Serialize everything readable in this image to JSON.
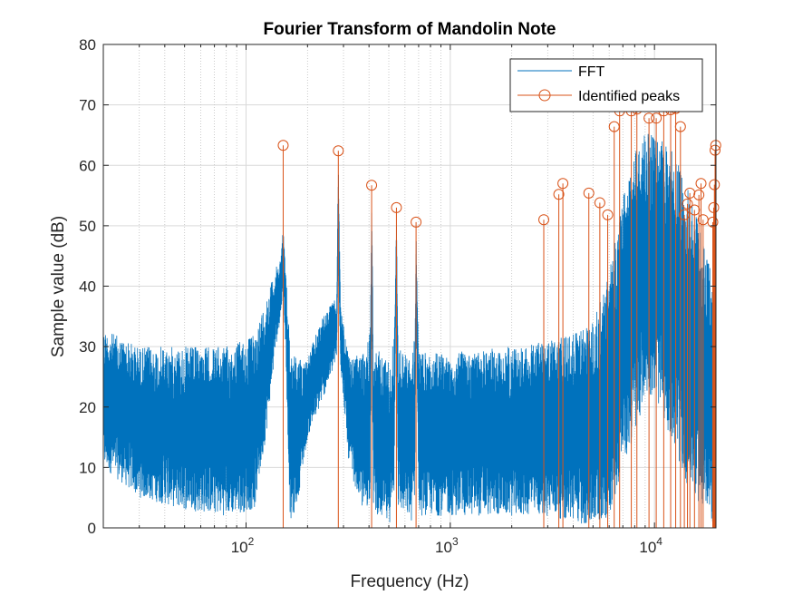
{
  "chart_data": {
    "type": "line",
    "title": "Fourier Transform of Mandolin Note",
    "xlabel": "Frequency (Hz)",
    "ylabel": "Sample value (dB)",
    "xscale": "log",
    "xlim": [
      20,
      20000
    ],
    "ylim": [
      0,
      80
    ],
    "yticks": [
      0,
      10,
      20,
      30,
      40,
      50,
      60,
      70,
      80
    ],
    "xticks": [
      {
        "value": 100,
        "base": "10",
        "exp": "2"
      },
      {
        "value": 1000,
        "base": "10",
        "exp": "3"
      },
      {
        "value": 10000,
        "base": "10",
        "exp": "4"
      }
    ],
    "grid": true,
    "legend": {
      "placement": "top-right"
    },
    "colors": {
      "fft": "#0072BD",
      "peaks": "#D95319"
    },
    "series": [
      {
        "name": "FFT",
        "style": "line",
        "noise_envelope": {
          "x": [
            20,
            30,
            50,
            80,
            110,
            125,
            140,
            148,
            152,
            156,
            165,
            180,
            200,
            230,
            260,
            278,
            283,
            290,
            320,
            380,
            405,
            412,
            420,
            500,
            530,
            545,
            555,
            650,
            670,
            680,
            700,
            1000,
            2000,
            3000,
            4000,
            5000,
            6000,
            7000,
            8000,
            9000,
            10000,
            12000,
            14000,
            16000,
            18000,
            20000
          ],
          "upper": [
            33,
            30,
            30,
            30,
            32,
            38,
            43,
            45,
            50,
            43,
            30,
            28,
            28,
            34,
            37,
            38,
            62,
            37,
            28,
            29,
            33,
            56,
            30,
            28,
            31,
            52,
            30,
            28,
            32,
            50,
            29,
            29,
            30,
            31,
            32,
            34,
            42,
            55,
            62,
            66,
            65,
            63,
            58,
            52,
            45,
            40
          ],
          "lower": [
            10,
            5,
            3,
            2,
            3,
            15,
            30,
            35,
            40,
            30,
            0,
            5,
            15,
            20,
            25,
            28,
            45,
            27,
            10,
            2,
            5,
            45,
            3,
            0,
            5,
            45,
            3,
            1,
            5,
            40,
            2,
            2,
            2,
            2,
            1,
            0,
            2,
            10,
            15,
            22,
            22,
            15,
            8,
            5,
            2,
            0
          ]
        }
      },
      {
        "name": "Identified peaks",
        "style": "stem",
        "points": [
          {
            "x": 152,
            "y": 63.3
          },
          {
            "x": 283,
            "y": 62.4
          },
          {
            "x": 412,
            "y": 56.7
          },
          {
            "x": 545,
            "y": 53.0
          },
          {
            "x": 680,
            "y": 50.6
          },
          {
            "x": 2870,
            "y": 51.0
          },
          {
            "x": 3400,
            "y": 55.2
          },
          {
            "x": 3560,
            "y": 57.0
          },
          {
            "x": 4770,
            "y": 55.4
          },
          {
            "x": 5400,
            "y": 53.8
          },
          {
            "x": 5900,
            "y": 51.8
          },
          {
            "x": 6350,
            "y": 66.4
          },
          {
            "x": 6750,
            "y": 69.0
          },
          {
            "x": 7700,
            "y": 69.0
          },
          {
            "x": 8200,
            "y": 69.3
          },
          {
            "x": 9400,
            "y": 67.8
          },
          {
            "x": 10200,
            "y": 67.8
          },
          {
            "x": 11100,
            "y": 69.0
          },
          {
            "x": 12000,
            "y": 69.2
          },
          {
            "x": 12700,
            "y": 69.4
          },
          {
            "x": 13400,
            "y": 66.4
          },
          {
            "x": 14000,
            "y": 51.8
          },
          {
            "x": 14500,
            "y": 53.6
          },
          {
            "x": 14900,
            "y": 55.4
          },
          {
            "x": 15700,
            "y": 52.6
          },
          {
            "x": 16500,
            "y": 55.1
          },
          {
            "x": 16900,
            "y": 57.0
          },
          {
            "x": 17300,
            "y": 51.0
          },
          {
            "x": 19300,
            "y": 50.6
          },
          {
            "x": 19500,
            "y": 53.0
          },
          {
            "x": 19650,
            "y": 56.8
          },
          {
            "x": 19800,
            "y": 62.5
          },
          {
            "x": 19950,
            "y": 63.3
          }
        ]
      }
    ]
  }
}
